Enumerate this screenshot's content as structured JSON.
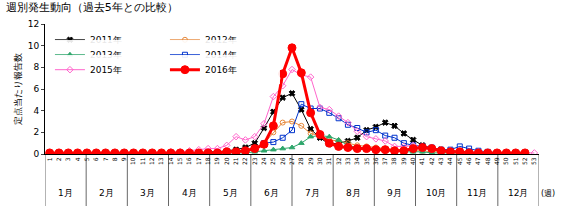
{
  "chart_data": {
    "type": "line",
    "title": "週別発生動向（過去5年との比較）",
    "y_label": "定点当たり報告数",
    "x_label": "(週)",
    "months": [
      "1月",
      "2月",
      "3月",
      "4月",
      "5月",
      "6月",
      "7月",
      "8月",
      "9月",
      "10月",
      "11月",
      "12月"
    ],
    "categories": [
      "1",
      "2",
      "3",
      "4",
      "5",
      "6",
      "7",
      "8",
      "9",
      "10",
      "11",
      "12",
      "13",
      "14",
      "15",
      "16",
      "17",
      "18",
      "19",
      "20",
      "21",
      "22",
      "23",
      "24",
      "25",
      "26",
      "27",
      "28",
      "29",
      "30",
      "31",
      "32",
      "33",
      "34",
      "35",
      "36",
      "37",
      "38",
      "39",
      "40",
      "41",
      "42",
      "43",
      "44",
      "45",
      "46",
      "47",
      "48",
      "49",
      "50",
      "51",
      "52",
      "53"
    ],
    "ylim": [
      0,
      12
    ],
    "yticks": [
      0,
      2,
      4,
      6,
      8,
      10,
      12
    ],
    "grid": false,
    "legend": "upper left",
    "series": [
      {
        "name": "2011年",
        "color": "#000000",
        "marker": "x",
        "line_style": "solid",
        "values": [
          0.1,
          0.1,
          0.1,
          0.1,
          0.1,
          0.1,
          0.1,
          0.1,
          0.1,
          0.1,
          0.1,
          0.1,
          0.1,
          0.1,
          0.1,
          0.1,
          0.1,
          0.2,
          0.2,
          0.3,
          0.4,
          0.6,
          1.0,
          2.4,
          3.9,
          5.2,
          5.6,
          4.1,
          2.3,
          1.5,
          0.9,
          1.0,
          1.2,
          1.5,
          2.2,
          2.5,
          2.9,
          2.6,
          1.9,
          1.3,
          0.8,
          0.5,
          0.4,
          0.3,
          0.2,
          0.2,
          0.1,
          0.1,
          0.1,
          0.1,
          0.1,
          0.1,
          null
        ]
      },
      {
        "name": "2012年",
        "color": "#e6893c",
        "marker": "circle-open",
        "line_style": "solid",
        "values": [
          0.1,
          0.1,
          0.1,
          0.1,
          0.1,
          0.1,
          0.1,
          0.1,
          0.1,
          0.1,
          0.1,
          0.1,
          0.1,
          0.1,
          0.1,
          0.1,
          0.1,
          0.1,
          0.1,
          0.2,
          0.2,
          0.3,
          0.5,
          1.0,
          2.0,
          2.9,
          3.0,
          2.6,
          1.9,
          1.7,
          1.3,
          1.2,
          1.0,
          0.8,
          0.7,
          0.6,
          0.5,
          0.4,
          0.4,
          0.3,
          0.3,
          0.2,
          0.2,
          0.1,
          0.1,
          0.1,
          0.1,
          0.1,
          0.1,
          0.1,
          0.1,
          0.1,
          null
        ]
      },
      {
        "name": "2013年",
        "color": "#2ea66b",
        "marker": "triangle-up",
        "line_style": "solid",
        "values": [
          0.1,
          0.1,
          0.1,
          0.1,
          0.1,
          0.1,
          0.1,
          0.1,
          0.1,
          0.1,
          0.1,
          0.1,
          0.1,
          0.1,
          0.1,
          0.1,
          0.1,
          0.1,
          0.1,
          0.1,
          0.1,
          0.1,
          0.2,
          0.3,
          0.4,
          0.5,
          0.6,
          1.0,
          1.6,
          1.7,
          1.6,
          1.3,
          0.8,
          0.6,
          0.5,
          0.4,
          0.3,
          0.3,
          0.2,
          0.2,
          0.2,
          0.1,
          0.1,
          0.1,
          0.1,
          0.1,
          0.1,
          0.1,
          0.1,
          0.1,
          0.1,
          0.1,
          null
        ]
      },
      {
        "name": "2014年",
        "color": "#0033cc",
        "marker": "square-open",
        "line_style": "solid",
        "values": [
          0.1,
          0.1,
          0.1,
          0.1,
          0.1,
          0.1,
          0.1,
          0.1,
          0.1,
          0.1,
          0.1,
          0.1,
          0.1,
          0.1,
          0.1,
          0.1,
          0.1,
          0.1,
          0.1,
          0.2,
          0.2,
          0.3,
          0.5,
          1.0,
          1.1,
          1.5,
          2.2,
          4.6,
          4.2,
          4.2,
          3.8,
          3.3,
          2.7,
          2.4,
          2.0,
          2.2,
          1.7,
          1.5,
          1.0,
          0.8,
          0.7,
          0.6,
          0.4,
          0.4,
          0.7,
          0.5,
          0.3,
          0.2,
          0.1,
          0.1,
          0.1,
          0.1,
          null
        ]
      },
      {
        "name": "2015年",
        "color": "#ff66cc",
        "marker": "diamond-open",
        "line_style": "solid",
        "values": [
          0.1,
          0.1,
          0.1,
          0.1,
          0.1,
          0.1,
          0.1,
          0.1,
          0.1,
          0.1,
          0.1,
          0.1,
          0.1,
          0.2,
          0.2,
          0.3,
          0.4,
          0.5,
          0.5,
          0.8,
          1.6,
          1.3,
          1.6,
          2.8,
          5.3,
          6.3,
          7.8,
          7.3,
          7.1,
          4.3,
          4.1,
          3.5,
          2.9,
          2.1,
          1.6,
          1.4,
          1.2,
          0.7,
          0.7,
          0.8,
          0.5,
          0.4,
          0.3,
          0.3,
          0.2,
          0.2,
          0.2,
          0.1,
          0.1,
          0.1,
          0.1,
          0.1,
          0.1
        ]
      },
      {
        "name": "2016年",
        "color": "#ff0000",
        "marker": "circle",
        "line_style": "solid",
        "values": [
          0.1,
          0.1,
          0.1,
          0.1,
          0.1,
          0.1,
          0.1,
          0.1,
          0.1,
          0.1,
          0.1,
          0.1,
          0.1,
          0.1,
          0.1,
          0.1,
          0.1,
          0.1,
          0.1,
          0.2,
          0.2,
          0.3,
          0.5,
          0.9,
          2.6,
          7.4,
          9.8,
          7.5,
          3.8,
          1.8,
          1.0,
          0.7,
          0.6,
          0.5,
          0.5,
          0.4,
          0.4,
          0.3,
          0.3,
          0.5,
          0.6,
          0.5,
          0.3,
          0.2,
          0.2,
          0.1,
          0.1,
          0.1,
          0.1,
          0.1,
          0.1,
          0.1,
          null
        ]
      }
    ]
  }
}
